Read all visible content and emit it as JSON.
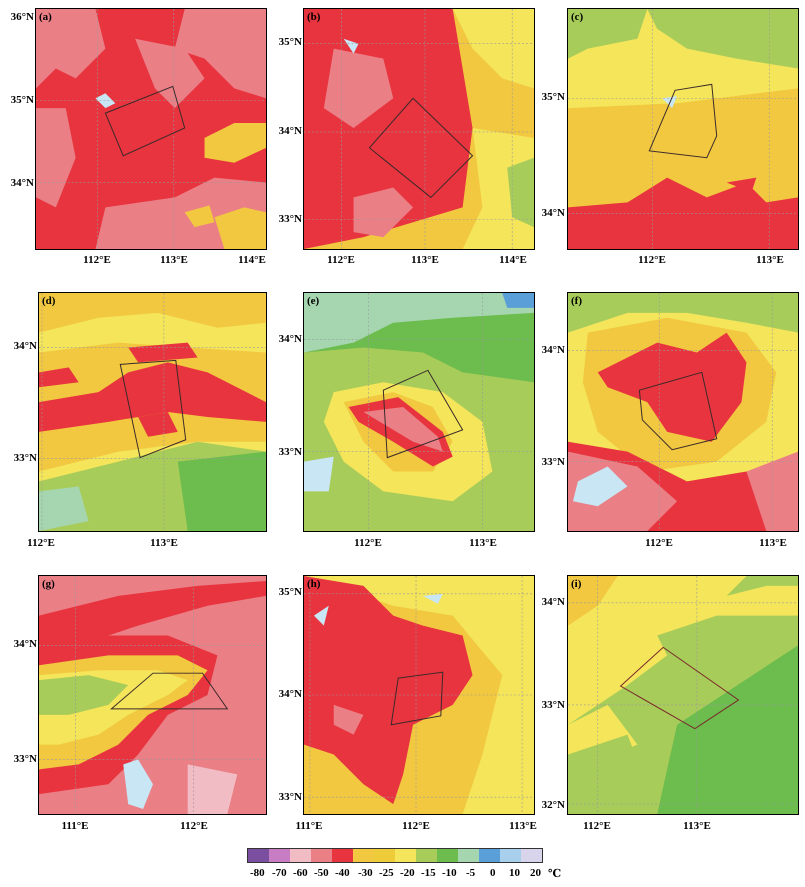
{
  "colors": {
    "c_-80": "#7b4fa0",
    "c_-70": "#c77cc4",
    "c_-60": "#f2bcc4",
    "c_-50": "#ea7f86",
    "c_-40": "#e8343f",
    "c_-30": "#f2c840",
    "c_-25": "#eecb38",
    "c_-20": "#f4e55a",
    "c_-15": "#a8cc5a",
    "c_-10": "#6cbc4e",
    "c_-5": "#a6d6b0",
    "c_0": "#5a9fd8",
    "c_10": "#a8d0ec",
    "c_20": "#d8d4ec",
    "water": "#c8e6f4",
    "box": "#3a2a2a"
  },
  "colorbar": {
    "labels": [
      "-80",
      "-70",
      "-60",
      "-50",
      "-40",
      "-30",
      "-25",
      "-20",
      "-15",
      "-10",
      "-5",
      "0",
      "10",
      "20"
    ],
    "unit": "℃"
  },
  "panels": [
    {
      "label": "(a)",
      "yticks": [
        "36°N",
        "35°N",
        "34°N"
      ],
      "xticks": [
        "112°E",
        "113°E",
        "114°E"
      ]
    },
    {
      "label": "(b)",
      "yticks": [
        "35°N",
        "34°N",
        "33°N"
      ],
      "xticks": [
        "112°E",
        "113°E",
        "114°E"
      ]
    },
    {
      "label": "(c)",
      "yticks": [
        "35°N",
        "34°N"
      ],
      "xticks": [
        "112°E",
        "113°E"
      ]
    },
    {
      "label": "(d)",
      "yticks": [
        "34°N",
        "33°N"
      ],
      "xticks": [
        "112°E",
        "113°E"
      ]
    },
    {
      "label": "(e)",
      "yticks": [
        "34°N",
        "33°N"
      ],
      "xticks": [
        "112°E",
        "113°E"
      ]
    },
    {
      "label": "(f)",
      "yticks": [
        "34°N",
        "33°N"
      ],
      "xticks": [
        "112°E",
        "113°E"
      ]
    },
    {
      "label": "(g)",
      "yticks": [
        "34°N",
        "33°N"
      ],
      "xticks": [
        "111°E",
        "112°E"
      ]
    },
    {
      "label": "(h)",
      "yticks": [
        "35°N",
        "34°N",
        "33°N"
      ],
      "xticks": [
        "111°E",
        "112°E",
        "113°E"
      ]
    },
    {
      "label": "(i)",
      "yticks": [
        "34°N",
        "33°N",
        "32°N"
      ],
      "xticks": [
        "112°E",
        "113°E"
      ]
    }
  ]
}
